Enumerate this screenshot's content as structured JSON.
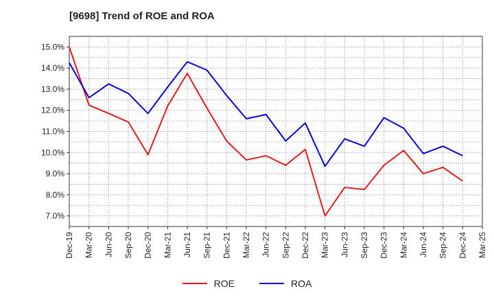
{
  "chart_data": {
    "type": "line",
    "title": "[9698]  Trend of ROE and ROA",
    "xlabel": "",
    "ylabel": "",
    "ylim": [
      6.5,
      15.5
    ],
    "yticks": [
      7.0,
      8.0,
      9.0,
      10.0,
      11.0,
      12.0,
      13.0,
      14.0,
      15.0
    ],
    "ytick_format": "%",
    "grid": true,
    "grid_style": "dotted",
    "legend_position": "bottom-center",
    "x": [
      "Dec-19",
      "Mar-20",
      "Jun-20",
      "Sep-20",
      "Dec-20",
      "Mar-21",
      "Jun-21",
      "Sep-21",
      "Dec-21",
      "Mar-22",
      "Jun-22",
      "Sep-22",
      "Dec-22",
      "Mar-23",
      "Jun-23",
      "Sep-23",
      "Dec-23",
      "Mar-24",
      "Jun-24",
      "Sep-24",
      "Dec-24",
      "Mar-25"
    ],
    "series": [
      {
        "name": "ROE",
        "color": "#e41a1c",
        "values": [
          15.0,
          12.25,
          11.85,
          11.45,
          9.9,
          12.2,
          13.75,
          12.1,
          10.55,
          9.65,
          9.85,
          9.4,
          10.15,
          7.0,
          8.35,
          8.25,
          9.4,
          10.1,
          9.0,
          9.3,
          8.65,
          null
        ]
      },
      {
        "name": "ROA",
        "color": "#0000e0",
        "values": [
          14.25,
          12.6,
          13.25,
          12.8,
          11.85,
          13.1,
          14.3,
          13.9,
          12.7,
          11.6,
          11.8,
          10.55,
          11.4,
          9.35,
          10.65,
          10.3,
          11.65,
          11.15,
          9.95,
          10.3,
          9.85,
          null
        ]
      }
    ]
  }
}
